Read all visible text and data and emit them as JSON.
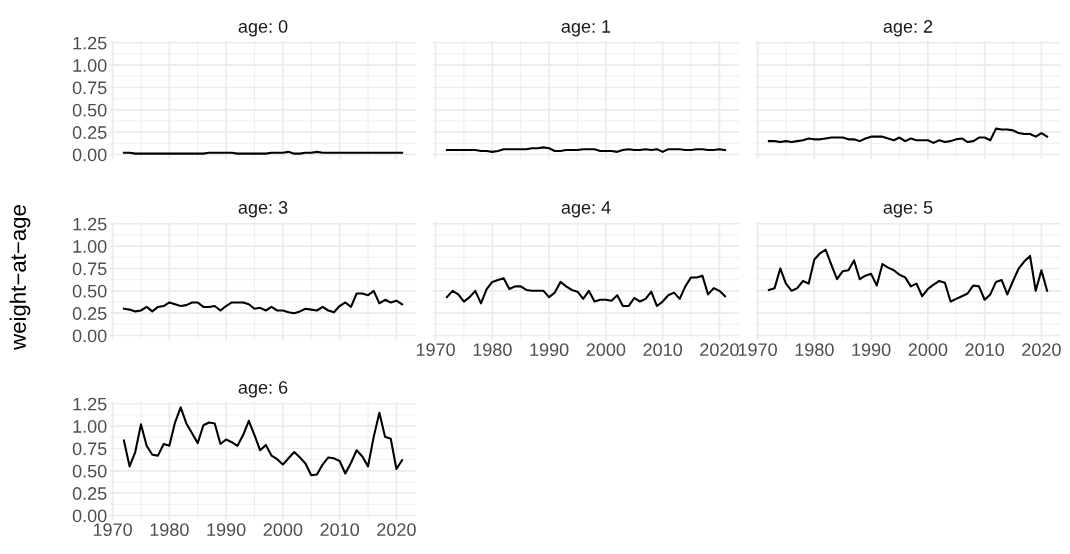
{
  "chart_data": [
    {
      "type": "line",
      "title": "age: 0",
      "x": [
        1972,
        1973,
        1974,
        1975,
        1976,
        1977,
        1978,
        1979,
        1980,
        1981,
        1982,
        1983,
        1984,
        1985,
        1986,
        1987,
        1988,
        1989,
        1990,
        1991,
        1992,
        1993,
        1994,
        1995,
        1996,
        1997,
        1998,
        1999,
        2000,
        2001,
        2002,
        2003,
        2004,
        2005,
        2006,
        2007,
        2008,
        2009,
        2010,
        2011,
        2012,
        2013,
        2014,
        2015,
        2016,
        2017,
        2018,
        2019,
        2020,
        2021
      ],
      "series": [
        {
          "color": "#000000",
          "values": [
            0.02,
            0.02,
            0.01,
            0.01,
            0.01,
            0.01,
            0.01,
            0.01,
            0.01,
            0.01,
            0.01,
            0.01,
            0.01,
            0.01,
            0.01,
            0.02,
            0.02,
            0.02,
            0.02,
            0.02,
            0.01,
            0.01,
            0.01,
            0.01,
            0.01,
            0.01,
            0.02,
            0.02,
            0.02,
            0.03,
            0.01,
            0.01,
            0.02,
            0.02,
            0.03,
            0.02,
            0.02,
            0.02,
            0.02,
            0.02,
            0.02,
            0.02,
            0.02,
            0.02,
            0.02,
            0.02,
            0.02,
            0.02,
            0.02,
            0.02
          ]
        }
      ],
      "xlim": [
        1969.55,
        2023.45
      ],
      "xticks": [
        {
          "value": 1970,
          "label": null
        },
        {
          "value": 1980,
          "label": null
        },
        {
          "value": 1990,
          "label": null
        },
        {
          "value": 2000,
          "label": null
        },
        {
          "value": 2010,
          "label": null
        },
        {
          "value": 2020,
          "label": null
        }
      ],
      "ylim": [
        -0.05,
        1.27
      ],
      "yticks": [
        {
          "value": 0,
          "label": "0.00"
        },
        {
          "value": 0.25,
          "label": "0.25"
        },
        {
          "value": 0.5,
          "label": "0.50"
        },
        {
          "value": 0.75,
          "label": "0.75"
        },
        {
          "value": 1,
          "label": "1.00"
        },
        {
          "value": 1.25,
          "label": "1.25"
        }
      ],
      "grid": true,
      "tick_labels": "y"
    },
    {
      "type": "line",
      "title": "age: 1",
      "x": [
        1972,
        1973,
        1974,
        1975,
        1976,
        1977,
        1978,
        1979,
        1980,
        1981,
        1982,
        1983,
        1984,
        1985,
        1986,
        1987,
        1988,
        1989,
        1990,
        1991,
        1992,
        1993,
        1994,
        1995,
        1996,
        1997,
        1998,
        1999,
        2000,
        2001,
        2002,
        2003,
        2004,
        2005,
        2006,
        2007,
        2008,
        2009,
        2010,
        2011,
        2012,
        2013,
        2014,
        2015,
        2016,
        2017,
        2018,
        2019,
        2020,
        2021
      ],
      "series": [
        {
          "color": "#000000",
          "values": [
            0.05,
            0.05,
            0.05,
            0.05,
            0.05,
            0.05,
            0.04,
            0.04,
            0.03,
            0.04,
            0.06,
            0.06,
            0.06,
            0.06,
            0.06,
            0.07,
            0.07,
            0.08,
            0.07,
            0.04,
            0.04,
            0.05,
            0.05,
            0.05,
            0.06,
            0.06,
            0.06,
            0.04,
            0.04,
            0.04,
            0.03,
            0.05,
            0.06,
            0.05,
            0.05,
            0.06,
            0.05,
            0.06,
            0.03,
            0.06,
            0.06,
            0.06,
            0.05,
            0.05,
            0.06,
            0.06,
            0.05,
            0.05,
            0.06,
            0.05
          ]
        }
      ],
      "xlim": [
        1969.55,
        2023.45
      ],
      "xticks": [
        {
          "value": 1970,
          "label": null
        },
        {
          "value": 1980,
          "label": null
        },
        {
          "value": 1990,
          "label": null
        },
        {
          "value": 2000,
          "label": null
        },
        {
          "value": 2010,
          "label": null
        },
        {
          "value": 2020,
          "label": null
        }
      ],
      "ylim": [
        -0.05,
        1.27
      ],
      "yticks": [
        {
          "value": 0,
          "label": null
        },
        {
          "value": 0.25,
          "label": null
        },
        {
          "value": 0.5,
          "label": null
        },
        {
          "value": 0.75,
          "label": null
        },
        {
          "value": 1,
          "label": null
        },
        {
          "value": 1.25,
          "label": null
        }
      ],
      "grid": true,
      "tick_labels": false
    },
    {
      "type": "line",
      "title": "age: 2",
      "x": [
        1972,
        1973,
        1974,
        1975,
        1976,
        1977,
        1978,
        1979,
        1980,
        1981,
        1982,
        1983,
        1984,
        1985,
        1986,
        1987,
        1988,
        1989,
        1990,
        1991,
        1992,
        1993,
        1994,
        1995,
        1996,
        1997,
        1998,
        1999,
        2000,
        2001,
        2002,
        2003,
        2004,
        2005,
        2006,
        2007,
        2008,
        2009,
        2010,
        2011,
        2012,
        2013,
        2014,
        2015,
        2016,
        2017,
        2018,
        2019,
        2020,
        2021
      ],
      "series": [
        {
          "color": "#000000",
          "values": [
            0.15,
            0.15,
            0.14,
            0.15,
            0.14,
            0.15,
            0.16,
            0.18,
            0.17,
            0.17,
            0.18,
            0.19,
            0.19,
            0.19,
            0.17,
            0.17,
            0.15,
            0.18,
            0.2,
            0.2,
            0.2,
            0.18,
            0.16,
            0.19,
            0.15,
            0.18,
            0.16,
            0.16,
            0.16,
            0.13,
            0.16,
            0.14,
            0.15,
            0.17,
            0.18,
            0.14,
            0.15,
            0.19,
            0.19,
            0.16,
            0.29,
            0.28,
            0.28,
            0.27,
            0.24,
            0.23,
            0.23,
            0.2,
            0.24,
            0.2
          ]
        }
      ],
      "xlim": [
        1969.55,
        2023.45
      ],
      "xticks": [
        {
          "value": 1970,
          "label": null
        },
        {
          "value": 1980,
          "label": null
        },
        {
          "value": 1990,
          "label": null
        },
        {
          "value": 2000,
          "label": null
        },
        {
          "value": 2010,
          "label": null
        },
        {
          "value": 2020,
          "label": null
        }
      ],
      "ylim": [
        -0.05,
        1.27
      ],
      "yticks": [
        {
          "value": 0,
          "label": null
        },
        {
          "value": 0.25,
          "label": null
        },
        {
          "value": 0.5,
          "label": null
        },
        {
          "value": 0.75,
          "label": null
        },
        {
          "value": 1,
          "label": null
        },
        {
          "value": 1.25,
          "label": null
        }
      ],
      "grid": true,
      "tick_labels": false
    },
    {
      "type": "line",
      "title": "age: 3",
      "ylabel": "weight−at−age",
      "x": [
        1972,
        1973,
        1974,
        1975,
        1976,
        1977,
        1978,
        1979,
        1980,
        1981,
        1982,
        1983,
        1984,
        1985,
        1986,
        1987,
        1988,
        1989,
        1990,
        1991,
        1992,
        1993,
        1994,
        1995,
        1996,
        1997,
        1998,
        1999,
        2000,
        2001,
        2002,
        2003,
        2004,
        2005,
        2006,
        2007,
        2008,
        2009,
        2010,
        2011,
        2012,
        2013,
        2014,
        2015,
        2016,
        2017,
        2018,
        2019,
        2020,
        2021
      ],
      "series": [
        {
          "color": "#000000",
          "values": [
            0.3,
            0.29,
            0.27,
            0.28,
            0.32,
            0.27,
            0.32,
            0.33,
            0.37,
            0.35,
            0.33,
            0.34,
            0.37,
            0.37,
            0.32,
            0.32,
            0.33,
            0.28,
            0.33,
            0.37,
            0.37,
            0.37,
            0.35,
            0.3,
            0.31,
            0.28,
            0.32,
            0.28,
            0.28,
            0.26,
            0.25,
            0.27,
            0.3,
            0.29,
            0.28,
            0.32,
            0.28,
            0.26,
            0.33,
            0.37,
            0.32,
            0.47,
            0.47,
            0.45,
            0.5,
            0.36,
            0.4,
            0.37,
            0.39,
            0.35
          ]
        }
      ],
      "xlim": [
        1969.55,
        2023.45
      ],
      "xticks": [
        {
          "value": 1970,
          "label": null
        },
        {
          "value": 1980,
          "label": null
        },
        {
          "value": 1990,
          "label": null
        },
        {
          "value": 2000,
          "label": null
        },
        {
          "value": 2010,
          "label": null
        },
        {
          "value": 2020,
          "label": null
        }
      ],
      "ylim": [
        -0.05,
        1.27
      ],
      "yticks": [
        {
          "value": 0,
          "label": "0.00"
        },
        {
          "value": 0.25,
          "label": "0.25"
        },
        {
          "value": 0.5,
          "label": "0.50"
        },
        {
          "value": 0.75,
          "label": "0.75"
        },
        {
          "value": 1,
          "label": "1.00"
        },
        {
          "value": 1.25,
          "label": "1.25"
        }
      ],
      "grid": true,
      "tick_labels": "y"
    },
    {
      "type": "line",
      "title": "age: 4",
      "x": [
        1972,
        1973,
        1974,
        1975,
        1976,
        1977,
        1978,
        1979,
        1980,
        1981,
        1982,
        1983,
        1984,
        1985,
        1986,
        1987,
        1988,
        1989,
        1990,
        1991,
        1992,
        1993,
        1994,
        1995,
        1996,
        1997,
        1998,
        1999,
        2000,
        2001,
        2002,
        2003,
        2004,
        2005,
        2006,
        2007,
        2008,
        2009,
        2010,
        2011,
        2012,
        2013,
        2014,
        2015,
        2016,
        2017,
        2018,
        2019,
        2020,
        2021
      ],
      "series": [
        {
          "color": "#000000",
          "values": [
            0.43,
            0.5,
            0.46,
            0.38,
            0.43,
            0.5,
            0.36,
            0.52,
            0.6,
            0.62,
            0.64,
            0.52,
            0.55,
            0.55,
            0.51,
            0.5,
            0.5,
            0.5,
            0.43,
            0.48,
            0.6,
            0.55,
            0.51,
            0.49,
            0.41,
            0.5,
            0.38,
            0.4,
            0.4,
            0.39,
            0.45,
            0.33,
            0.33,
            0.42,
            0.38,
            0.41,
            0.49,
            0.33,
            0.38,
            0.45,
            0.48,
            0.41,
            0.55,
            0.65,
            0.65,
            0.67,
            0.46,
            0.53,
            0.5,
            0.44
          ]
        }
      ],
      "xlim": [
        1969.55,
        2023.45
      ],
      "xticks": [
        1970,
        1980,
        1990,
        2000,
        2010,
        2020
      ],
      "ylim": [
        -0.05,
        1.27
      ],
      "yticks": [
        {
          "value": 0,
          "label": null
        },
        {
          "value": 0.25,
          "label": null
        },
        {
          "value": 0.5,
          "label": null
        },
        {
          "value": 0.75,
          "label": null
        },
        {
          "value": 1,
          "label": null
        },
        {
          "value": 1.25,
          "label": null
        }
      ],
      "grid": true,
      "tick_labels": "x"
    },
    {
      "type": "line",
      "title": "age: 5",
      "x": [
        1972,
        1973,
        1974,
        1975,
        1976,
        1977,
        1978,
        1979,
        1980,
        1981,
        1982,
        1983,
        1984,
        1985,
        1986,
        1987,
        1988,
        1989,
        1990,
        1991,
        1992,
        1993,
        1994,
        1995,
        1996,
        1997,
        1998,
        1999,
        2000,
        2001,
        2002,
        2003,
        2004,
        2005,
        2006,
        2007,
        2008,
        2009,
        2010,
        2011,
        2012,
        2013,
        2014,
        2015,
        2016,
        2017,
        2018,
        2019,
        2020,
        2021
      ],
      "series": [
        {
          "color": "#000000",
          "values": [
            0.51,
            0.53,
            0.75,
            0.58,
            0.5,
            0.53,
            0.61,
            0.58,
            0.85,
            0.92,
            0.96,
            0.79,
            0.63,
            0.72,
            0.73,
            0.84,
            0.63,
            0.67,
            0.69,
            0.56,
            0.8,
            0.76,
            0.73,
            0.68,
            0.65,
            0.55,
            0.58,
            0.44,
            0.52,
            0.57,
            0.61,
            0.59,
            0.38,
            0.41,
            0.44,
            0.47,
            0.56,
            0.55,
            0.4,
            0.46,
            0.6,
            0.62,
            0.46,
            0.61,
            0.75,
            0.83,
            0.89,
            0.5,
            0.73,
            0.5
          ]
        }
      ],
      "xlim": [
        1969.55,
        2023.45
      ],
      "xticks": [
        1970,
        1980,
        1990,
        2000,
        2010,
        2020
      ],
      "ylim": [
        -0.05,
        1.27
      ],
      "yticks": [
        {
          "value": 0,
          "label": null
        },
        {
          "value": 0.25,
          "label": null
        },
        {
          "value": 0.5,
          "label": null
        },
        {
          "value": 0.75,
          "label": null
        },
        {
          "value": 1,
          "label": null
        },
        {
          "value": 1.25,
          "label": null
        }
      ],
      "grid": true,
      "tick_labels": "x"
    },
    {
      "type": "line",
      "title": "age: 6",
      "x": [
        1972,
        1973,
        1974,
        1975,
        1976,
        1977,
        1978,
        1979,
        1980,
        1981,
        1982,
        1983,
        1984,
        1985,
        1986,
        1987,
        1988,
        1989,
        1990,
        1991,
        1992,
        1993,
        1994,
        1995,
        1996,
        1997,
        1998,
        1999,
        2000,
        2001,
        2002,
        2003,
        2004,
        2005,
        2006,
        2007,
        2008,
        2009,
        2010,
        2011,
        2012,
        2013,
        2014,
        2015,
        2016,
        2017,
        2018,
        2019,
        2020,
        2021
      ],
      "series": [
        {
          "color": "#000000",
          "values": [
            0.84,
            0.55,
            0.71,
            1.02,
            0.78,
            0.68,
            0.67,
            0.8,
            0.78,
            1.04,
            1.21,
            1.03,
            0.92,
            0.81,
            1.01,
            1.04,
            1.03,
            0.8,
            0.85,
            0.82,
            0.78,
            0.9,
            1.06,
            0.9,
            0.73,
            0.79,
            0.67,
            0.63,
            0.57,
            0.64,
            0.71,
            0.65,
            0.58,
            0.45,
            0.46,
            0.57,
            0.65,
            0.64,
            0.61,
            0.47,
            0.59,
            0.73,
            0.66,
            0.55,
            0.88,
            1.15,
            0.88,
            0.86,
            0.52,
            0.62
          ]
        }
      ],
      "xlim": [
        1969.55,
        2023.45
      ],
      "xticks": [
        1970,
        1980,
        1990,
        2000,
        2010,
        2020
      ],
      "ylim": [
        -0.05,
        1.27
      ],
      "yticks": [
        {
          "value": 0,
          "label": "0.00"
        },
        {
          "value": 0.25,
          "label": "0.25"
        },
        {
          "value": 0.5,
          "label": "0.50"
        },
        {
          "value": 0.75,
          "label": "0.75"
        },
        {
          "value": 1,
          "label": "1.00"
        },
        {
          "value": 1.25,
          "label": "1.25"
        }
      ],
      "grid": true
    }
  ]
}
